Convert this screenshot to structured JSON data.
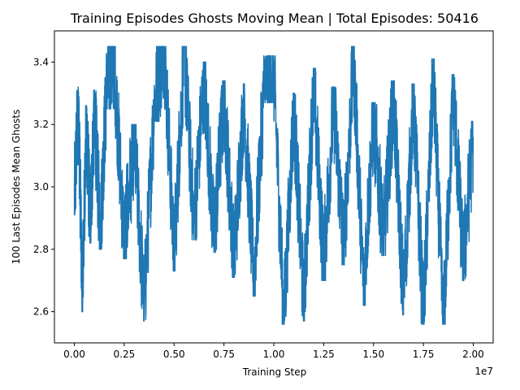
{
  "chart_data": {
    "type": "line",
    "title": "Training Episodes Ghosts Moving Mean | Total Episodes: 50416",
    "xlabel": "Training Step",
    "ylabel": "100 Last Episodes Mean Ghosts",
    "x_offset_label": "1e7",
    "xlim": [
      -0.1,
      2.1
    ],
    "ylim": [
      2.5,
      3.5
    ],
    "xticks": [
      0.0,
      0.25,
      0.5,
      0.75,
      1.0,
      1.25,
      1.5,
      1.75,
      2.0
    ],
    "xtick_labels": [
      "0.00",
      "0.25",
      "0.50",
      "0.75",
      "1.00",
      "1.25",
      "1.50",
      "1.75",
      "2.00"
    ],
    "yticks": [
      2.6,
      2.8,
      3.0,
      3.2,
      3.4
    ],
    "ytick_labels": [
      "2.6",
      "2.8",
      "3.0",
      "3.2",
      "3.4"
    ],
    "grid": false,
    "series_color": "#1f77b4",
    "series": [
      {
        "x": [
          0.0,
          0.02,
          0.04,
          0.06,
          0.08,
          0.1,
          0.13,
          0.16,
          0.2,
          0.25,
          0.3,
          0.35,
          0.4,
          0.45,
          0.5,
          0.55,
          0.6,
          0.65,
          0.7,
          0.75,
          0.8,
          0.85,
          0.9,
          0.95,
          1.0,
          1.05,
          1.1,
          1.15,
          1.2,
          1.25,
          1.3,
          1.35,
          1.4,
          1.45,
          1.5,
          1.55,
          1.6,
          1.65,
          1.7,
          1.75,
          1.8,
          1.85,
          1.9,
          1.95,
          2.0
        ],
        "y": [
          2.96,
          3.27,
          2.65,
          3.21,
          2.87,
          3.26,
          2.85,
          3.3,
          3.4,
          2.82,
          3.15,
          2.62,
          3.26,
          3.46,
          2.78,
          3.44,
          2.88,
          3.35,
          2.84,
          3.29,
          2.76,
          3.28,
          2.7,
          3.32,
          3.37,
          2.57,
          3.25,
          2.62,
          3.33,
          2.75,
          3.27,
          2.8,
          3.41,
          2.67,
          3.22,
          2.83,
          3.29,
          2.64,
          3.28,
          2.58,
          3.36,
          2.55,
          3.31,
          2.75,
          3.16
        ]
      }
    ]
  }
}
